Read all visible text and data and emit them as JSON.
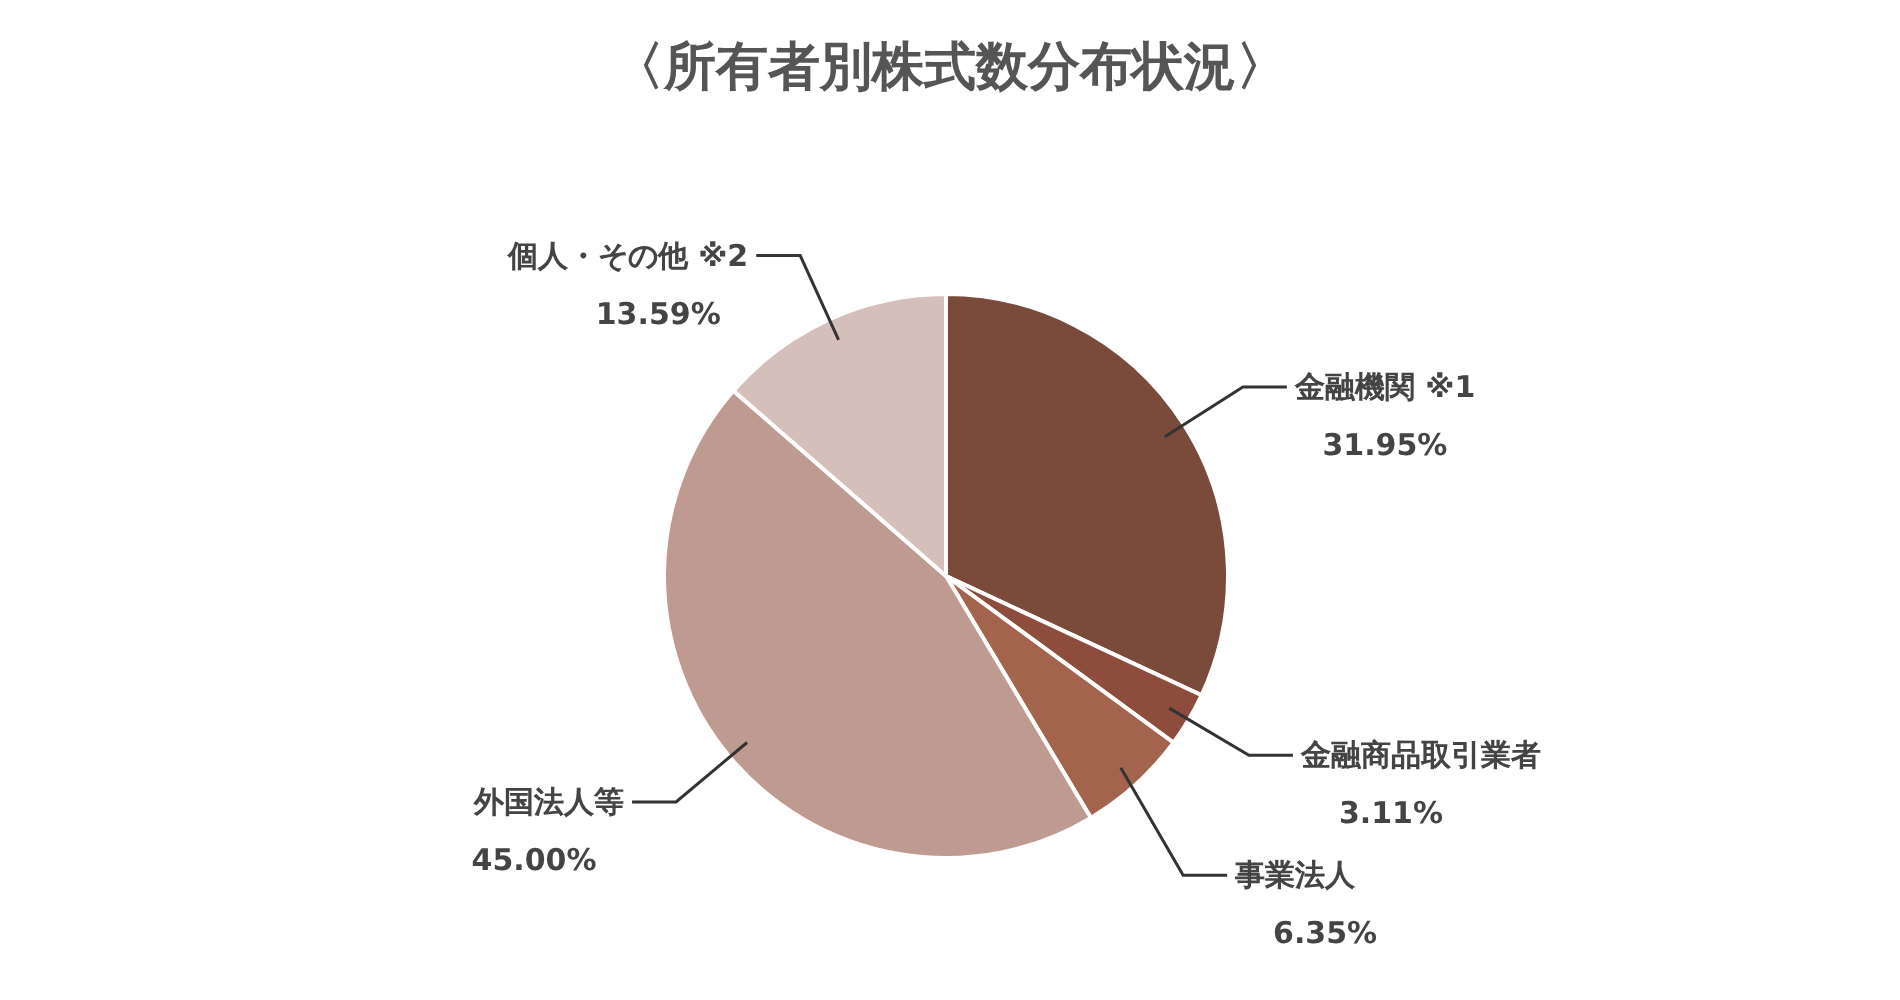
{
  "chart_data": {
    "type": "pie",
    "title": "〈所有者別株式数分布状況〉",
    "categories": [
      "金融機関 ※1",
      "金融商品取引業者",
      "事業法人",
      "外国法人等",
      "個人・その他 ※2"
    ],
    "values": [
      31.95,
      3.11,
      6.35,
      45.0,
      13.59
    ],
    "colors": [
      "#7a4a3a",
      "#8e4c3c",
      "#a3634c",
      "#bf9a91",
      "#d4bfbb"
    ],
    "value_labels": [
      "31.95%",
      "3.11%",
      "6.35%",
      "45.00%",
      "13.59%"
    ]
  }
}
